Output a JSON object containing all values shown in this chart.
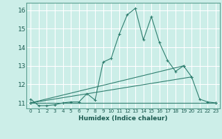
{
  "xlabel": "Humidex (Indice chaleur)",
  "bg_color": "#cceee8",
  "line_color": "#2e7d6e",
  "grid_color": "#ffffff",
  "xlim": [
    -0.5,
    23.5
  ],
  "ylim": [
    10.7,
    16.4
  ],
  "yticks": [
    11,
    12,
    13,
    14,
    15,
    16
  ],
  "xticks": [
    0,
    1,
    2,
    3,
    4,
    5,
    6,
    7,
    8,
    9,
    10,
    11,
    12,
    13,
    14,
    15,
    16,
    17,
    18,
    19,
    20,
    21,
    22,
    23
  ],
  "series": [
    {
      "x": [
        0,
        1,
        2,
        3,
        4,
        5,
        6,
        7,
        8,
        9,
        10,
        11,
        12,
        13,
        14,
        15,
        16,
        17,
        18,
        19,
        20,
        21,
        22,
        23
      ],
      "y": [
        11.2,
        10.85,
        10.85,
        10.9,
        11.0,
        11.05,
        11.05,
        11.5,
        11.15,
        13.2,
        13.4,
        14.7,
        15.75,
        16.1,
        14.4,
        15.65,
        14.25,
        13.3,
        12.7,
        13.0,
        12.4,
        11.2,
        11.05,
        11.0
      ]
    },
    {
      "x": [
        0,
        23
      ],
      "y": [
        11.0,
        11.0
      ]
    },
    {
      "x": [
        0,
        19
      ],
      "y": [
        11.0,
        13.0
      ]
    },
    {
      "x": [
        0,
        20
      ],
      "y": [
        11.0,
        12.4
      ]
    }
  ]
}
